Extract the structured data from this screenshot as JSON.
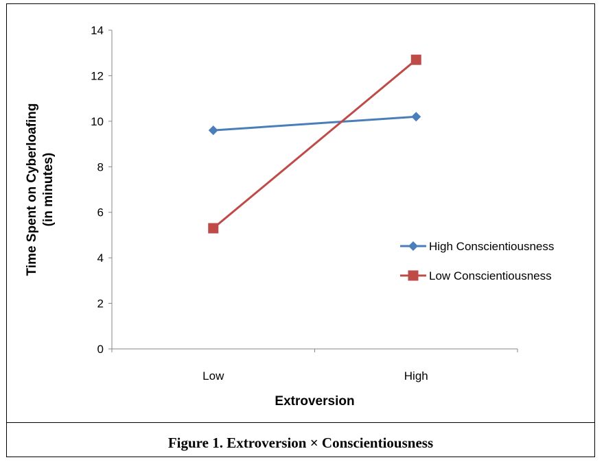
{
  "chart_data": {
    "type": "line",
    "title": "",
    "xlabel": "Extroversion",
    "ylabel": [
      "Time Spent  on Cyberloafing",
      "(in minutes)"
    ],
    "categories": [
      "Low",
      "High"
    ],
    "ylim": [
      0,
      14
    ],
    "yticks": [
      0,
      2,
      4,
      6,
      8,
      10,
      12,
      14
    ],
    "grid": false,
    "legend_position": "right",
    "series": [
      {
        "name": "High Conscientiousness",
        "values": [
          9.6,
          10.2
        ],
        "color": "#4a7ebb",
        "marker": "diamond"
      },
      {
        "name": "Low Conscientiousness",
        "values": [
          5.3,
          12.7
        ],
        "color": "#be4b48",
        "marker": "square"
      }
    ]
  },
  "caption": "Figure 1. Extroversion × Conscientiousness"
}
